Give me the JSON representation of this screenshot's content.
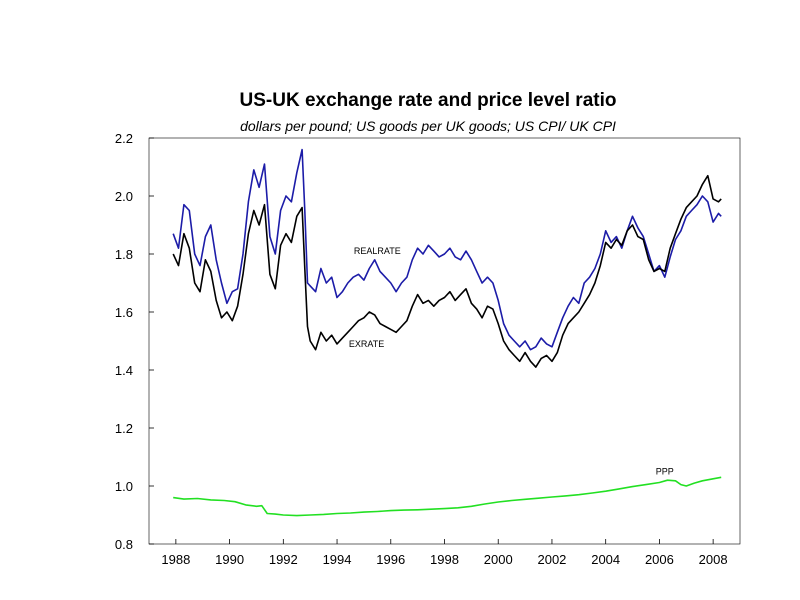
{
  "chart_data": {
    "type": "line",
    "title": "US-UK exchange rate and price level ratio",
    "subtitle": "dollars per pound; US goods per UK goods; US CPI/ UK CPI",
    "xlabel": "",
    "ylabel": "",
    "xlim": [
      1987.0,
      2009.0
    ],
    "ylim": [
      0.8,
      2.2
    ],
    "x_ticks": [
      "1988",
      "1990",
      "1992",
      "1994",
      "1996",
      "1998",
      "2000",
      "2002",
      "2004",
      "2006",
      "2008"
    ],
    "y_ticks": [
      "0.8",
      "1.0",
      "1.2",
      "1.4",
      "1.6",
      "1.8",
      "2.0",
      "2.2"
    ],
    "grid": false,
    "series": [
      {
        "name": "REALRATE",
        "color": "#1c1ca8",
        "points": [
          [
            1987.9,
            1.87
          ],
          [
            1988.1,
            1.82
          ],
          [
            1988.3,
            1.97
          ],
          [
            1988.5,
            1.95
          ],
          [
            1988.7,
            1.8
          ],
          [
            1988.9,
            1.76
          ],
          [
            1989.1,
            1.86
          ],
          [
            1989.3,
            1.9
          ],
          [
            1989.5,
            1.78
          ],
          [
            1989.7,
            1.7
          ],
          [
            1989.9,
            1.63
          ],
          [
            1990.1,
            1.67
          ],
          [
            1990.3,
            1.68
          ],
          [
            1990.5,
            1.8
          ],
          [
            1990.7,
            1.98
          ],
          [
            1990.9,
            2.09
          ],
          [
            1991.1,
            2.03
          ],
          [
            1991.3,
            2.11
          ],
          [
            1991.5,
            1.86
          ],
          [
            1991.7,
            1.8
          ],
          [
            1991.9,
            1.95
          ],
          [
            1992.1,
            2.0
          ],
          [
            1992.3,
            1.98
          ],
          [
            1992.5,
            2.08
          ],
          [
            1992.7,
            2.16
          ],
          [
            1992.8,
            1.95
          ],
          [
            1992.9,
            1.7
          ],
          [
            1993.0,
            1.69
          ],
          [
            1993.2,
            1.67
          ],
          [
            1993.4,
            1.75
          ],
          [
            1993.6,
            1.7
          ],
          [
            1993.8,
            1.72
          ],
          [
            1994.0,
            1.65
          ],
          [
            1994.2,
            1.67
          ],
          [
            1994.4,
            1.7
          ],
          [
            1994.6,
            1.72
          ],
          [
            1994.8,
            1.73
          ],
          [
            1995.0,
            1.71
          ],
          [
            1995.2,
            1.75
          ],
          [
            1995.4,
            1.78
          ],
          [
            1995.6,
            1.74
          ],
          [
            1995.8,
            1.72
          ],
          [
            1996.0,
            1.7
          ],
          [
            1996.2,
            1.67
          ],
          [
            1996.4,
            1.7
          ],
          [
            1996.6,
            1.72
          ],
          [
            1996.8,
            1.78
          ],
          [
            1997.0,
            1.82
          ],
          [
            1997.2,
            1.8
          ],
          [
            1997.4,
            1.83
          ],
          [
            1997.6,
            1.81
          ],
          [
            1997.8,
            1.79
          ],
          [
            1998.0,
            1.8
          ],
          [
            1998.2,
            1.82
          ],
          [
            1998.4,
            1.79
          ],
          [
            1998.6,
            1.78
          ],
          [
            1998.8,
            1.81
          ],
          [
            1999.0,
            1.78
          ],
          [
            1999.2,
            1.74
          ],
          [
            1999.4,
            1.7
          ],
          [
            1999.6,
            1.72
          ],
          [
            1999.8,
            1.7
          ],
          [
            2000.0,
            1.64
          ],
          [
            2000.2,
            1.56
          ],
          [
            2000.4,
            1.52
          ],
          [
            2000.6,
            1.5
          ],
          [
            2000.8,
            1.48
          ],
          [
            2001.0,
            1.5
          ],
          [
            2001.2,
            1.47
          ],
          [
            2001.4,
            1.48
          ],
          [
            2001.6,
            1.51
          ],
          [
            2001.8,
            1.49
          ],
          [
            2002.0,
            1.48
          ],
          [
            2002.2,
            1.53
          ],
          [
            2002.4,
            1.58
          ],
          [
            2002.6,
            1.62
          ],
          [
            2002.8,
            1.65
          ],
          [
            2003.0,
            1.63
          ],
          [
            2003.2,
            1.7
          ],
          [
            2003.4,
            1.72
          ],
          [
            2003.6,
            1.75
          ],
          [
            2003.8,
            1.8
          ],
          [
            2004.0,
            1.88
          ],
          [
            2004.2,
            1.84
          ],
          [
            2004.4,
            1.86
          ],
          [
            2004.6,
            1.82
          ],
          [
            2004.8,
            1.88
          ],
          [
            2005.0,
            1.93
          ],
          [
            2005.2,
            1.89
          ],
          [
            2005.4,
            1.86
          ],
          [
            2005.6,
            1.8
          ],
          [
            2005.8,
            1.74
          ],
          [
            2006.0,
            1.76
          ],
          [
            2006.2,
            1.72
          ],
          [
            2006.4,
            1.79
          ],
          [
            2006.6,
            1.85
          ],
          [
            2006.8,
            1.88
          ],
          [
            2007.0,
            1.93
          ],
          [
            2007.2,
            1.95
          ],
          [
            2007.4,
            1.97
          ],
          [
            2007.6,
            2.0
          ],
          [
            2007.8,
            1.98
          ],
          [
            2008.0,
            1.91
          ],
          [
            2008.2,
            1.94
          ],
          [
            2008.3,
            1.93
          ]
        ]
      },
      {
        "name": "EXRATE",
        "color": "#000000",
        "points": [
          [
            1987.9,
            1.8
          ],
          [
            1988.1,
            1.76
          ],
          [
            1988.3,
            1.87
          ],
          [
            1988.5,
            1.82
          ],
          [
            1988.7,
            1.7
          ],
          [
            1988.9,
            1.67
          ],
          [
            1989.1,
            1.78
          ],
          [
            1989.3,
            1.74
          ],
          [
            1989.5,
            1.64
          ],
          [
            1989.7,
            1.58
          ],
          [
            1989.9,
            1.6
          ],
          [
            1990.1,
            1.57
          ],
          [
            1990.3,
            1.62
          ],
          [
            1990.5,
            1.73
          ],
          [
            1990.7,
            1.87
          ],
          [
            1990.9,
            1.95
          ],
          [
            1991.1,
            1.9
          ],
          [
            1991.3,
            1.97
          ],
          [
            1991.5,
            1.73
          ],
          [
            1991.7,
            1.68
          ],
          [
            1991.9,
            1.83
          ],
          [
            1992.1,
            1.87
          ],
          [
            1992.3,
            1.84
          ],
          [
            1992.5,
            1.93
          ],
          [
            1992.7,
            1.96
          ],
          [
            1992.8,
            1.75
          ],
          [
            1992.9,
            1.55
          ],
          [
            1993.0,
            1.5
          ],
          [
            1993.2,
            1.47
          ],
          [
            1993.4,
            1.53
          ],
          [
            1993.6,
            1.5
          ],
          [
            1993.8,
            1.52
          ],
          [
            1994.0,
            1.49
          ],
          [
            1994.2,
            1.51
          ],
          [
            1994.4,
            1.53
          ],
          [
            1994.6,
            1.55
          ],
          [
            1994.8,
            1.57
          ],
          [
            1995.0,
            1.58
          ],
          [
            1995.2,
            1.6
          ],
          [
            1995.4,
            1.59
          ],
          [
            1995.6,
            1.56
          ],
          [
            1995.8,
            1.55
          ],
          [
            1996.0,
            1.54
          ],
          [
            1996.2,
            1.53
          ],
          [
            1996.4,
            1.55
          ],
          [
            1996.6,
            1.57
          ],
          [
            1996.8,
            1.62
          ],
          [
            1997.0,
            1.66
          ],
          [
            1997.2,
            1.63
          ],
          [
            1997.4,
            1.64
          ],
          [
            1997.6,
            1.62
          ],
          [
            1997.8,
            1.64
          ],
          [
            1998.0,
            1.65
          ],
          [
            1998.2,
            1.67
          ],
          [
            1998.4,
            1.64
          ],
          [
            1998.6,
            1.66
          ],
          [
            1998.8,
            1.68
          ],
          [
            1999.0,
            1.63
          ],
          [
            1999.2,
            1.61
          ],
          [
            1999.4,
            1.58
          ],
          [
            1999.6,
            1.62
          ],
          [
            1999.8,
            1.61
          ],
          [
            2000.0,
            1.56
          ],
          [
            2000.2,
            1.5
          ],
          [
            2000.4,
            1.47
          ],
          [
            2000.6,
            1.45
          ],
          [
            2000.8,
            1.43
          ],
          [
            2001.0,
            1.46
          ],
          [
            2001.2,
            1.43
          ],
          [
            2001.4,
            1.41
          ],
          [
            2001.6,
            1.44
          ],
          [
            2001.8,
            1.45
          ],
          [
            2002.0,
            1.43
          ],
          [
            2002.2,
            1.46
          ],
          [
            2002.4,
            1.52
          ],
          [
            2002.6,
            1.56
          ],
          [
            2002.8,
            1.58
          ],
          [
            2003.0,
            1.6
          ],
          [
            2003.2,
            1.63
          ],
          [
            2003.4,
            1.66
          ],
          [
            2003.6,
            1.7
          ],
          [
            2003.8,
            1.76
          ],
          [
            2004.0,
            1.84
          ],
          [
            2004.2,
            1.82
          ],
          [
            2004.4,
            1.85
          ],
          [
            2004.6,
            1.83
          ],
          [
            2004.8,
            1.88
          ],
          [
            2005.0,
            1.9
          ],
          [
            2005.2,
            1.86
          ],
          [
            2005.4,
            1.85
          ],
          [
            2005.6,
            1.78
          ],
          [
            2005.8,
            1.74
          ],
          [
            2006.0,
            1.75
          ],
          [
            2006.2,
            1.74
          ],
          [
            2006.4,
            1.82
          ],
          [
            2006.6,
            1.87
          ],
          [
            2006.8,
            1.92
          ],
          [
            2007.0,
            1.96
          ],
          [
            2007.2,
            1.98
          ],
          [
            2007.4,
            2.0
          ],
          [
            2007.6,
            2.04
          ],
          [
            2007.8,
            2.07
          ],
          [
            2008.0,
            1.99
          ],
          [
            2008.2,
            1.98
          ],
          [
            2008.3,
            1.99
          ]
        ]
      },
      {
        "name": "PPP",
        "color": "#22e022",
        "points": [
          [
            1987.9,
            0.96
          ],
          [
            1988.3,
            0.955
          ],
          [
            1988.8,
            0.957
          ],
          [
            1989.3,
            0.952
          ],
          [
            1989.8,
            0.95
          ],
          [
            1990.2,
            0.946
          ],
          [
            1990.6,
            0.935
          ],
          [
            1991.0,
            0.93
          ],
          [
            1991.2,
            0.932
          ],
          [
            1991.4,
            0.905
          ],
          [
            1991.7,
            0.903
          ],
          [
            1992.0,
            0.9
          ],
          [
            1992.5,
            0.898
          ],
          [
            1993.0,
            0.9
          ],
          [
            1993.5,
            0.902
          ],
          [
            1994.0,
            0.905
          ],
          [
            1994.5,
            0.907
          ],
          [
            1995.0,
            0.91
          ],
          [
            1995.5,
            0.912
          ],
          [
            1996.0,
            0.915
          ],
          [
            1996.5,
            0.917
          ],
          [
            1997.0,
            0.918
          ],
          [
            1997.5,
            0.92
          ],
          [
            1998.0,
            0.922
          ],
          [
            1998.5,
            0.925
          ],
          [
            1999.0,
            0.93
          ],
          [
            1999.5,
            0.938
          ],
          [
            2000.0,
            0.945
          ],
          [
            2000.5,
            0.95
          ],
          [
            2001.0,
            0.954
          ],
          [
            2001.5,
            0.958
          ],
          [
            2002.0,
            0.962
          ],
          [
            2002.5,
            0.966
          ],
          [
            2003.0,
            0.97
          ],
          [
            2003.5,
            0.976
          ],
          [
            2004.0,
            0.982
          ],
          [
            2004.5,
            0.99
          ],
          [
            2005.0,
            0.998
          ],
          [
            2005.5,
            1.005
          ],
          [
            2006.0,
            1.012
          ],
          [
            2006.3,
            1.02
          ],
          [
            2006.6,
            1.018
          ],
          [
            2006.8,
            1.005
          ],
          [
            2007.0,
            1.0
          ],
          [
            2007.3,
            1.01
          ],
          [
            2007.6,
            1.018
          ],
          [
            2008.0,
            1.025
          ],
          [
            2008.3,
            1.03
          ]
        ]
      }
    ],
    "annotations": [
      {
        "label": "REALRATE",
        "x": 1995.5,
        "y": 1.8
      },
      {
        "label": "EXRATE",
        "x": 1995.1,
        "y": 1.48
      },
      {
        "label": "PPP",
        "x": 2006.2,
        "y": 1.04
      }
    ]
  }
}
